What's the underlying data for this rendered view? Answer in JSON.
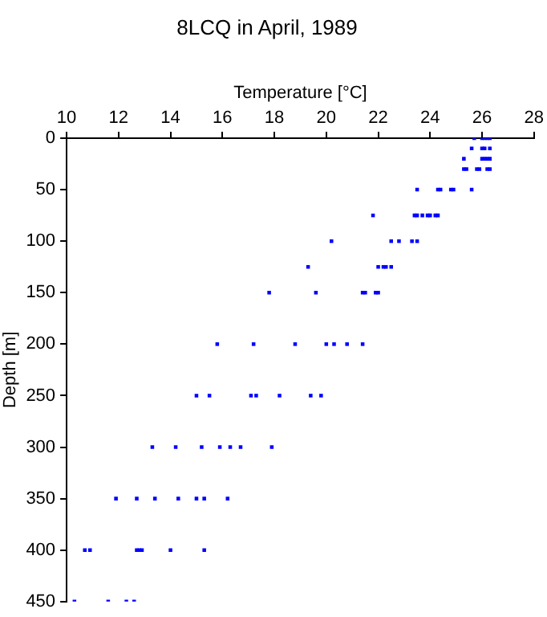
{
  "chart_data": {
    "type": "scatter",
    "title": "8LCQ in April, 1989",
    "xlabel": "Temperature [°C]",
    "ylabel": "Depth [m]",
    "xlim": [
      10,
      28
    ],
    "xticks": [
      10,
      12,
      14,
      16,
      18,
      20,
      22,
      24,
      26,
      28
    ],
    "ylim": [
      450,
      0
    ],
    "yticks": [
      0,
      50,
      100,
      150,
      200,
      250,
      300,
      350,
      400,
      450
    ],
    "grid": false,
    "legend": false,
    "marker": "square",
    "series": [
      {
        "color": "#0000ff",
        "x": [
          25.7,
          26.0,
          26.1,
          26.2,
          26.3,
          25.6,
          26.0,
          26.1,
          26.3,
          25.3,
          26.0,
          26.1,
          26.2,
          26.3,
          25.3,
          25.4,
          25.8,
          25.9,
          26.2,
          26.3,
          23.5,
          24.3,
          24.4,
          24.8,
          24.9,
          25.6,
          21.8,
          23.4,
          23.5,
          23.7,
          23.9,
          24.0,
          24.2,
          24.3,
          20.2,
          22.5,
          22.8,
          23.3,
          23.5,
          19.3,
          22.0,
          22.2,
          22.3,
          22.5,
          17.8,
          19.6,
          21.4,
          21.5,
          21.9,
          22.0,
          15.8,
          17.2,
          18.8,
          20.0,
          20.3,
          20.8,
          21.4,
          15.0,
          15.5,
          17.1,
          17.3,
          18.2,
          19.4,
          19.8,
          13.3,
          14.2,
          15.2,
          15.9,
          16.3,
          16.7,
          17.9,
          11.9,
          12.7,
          13.4,
          14.3,
          15.0,
          15.3,
          16.2,
          10.7,
          10.9,
          12.7,
          12.8,
          12.9,
          14.0,
          15.3,
          10.3,
          11.6,
          12.3,
          12.6
        ],
        "values": [
          0,
          0,
          0,
          0,
          0,
          10,
          10,
          10,
          10,
          20,
          20,
          20,
          20,
          20,
          30,
          30,
          30,
          30,
          30,
          30,
          50,
          50,
          50,
          50,
          50,
          50,
          75,
          75,
          75,
          75,
          75,
          75,
          75,
          75,
          100,
          100,
          100,
          100,
          100,
          125,
          125,
          125,
          125,
          125,
          150,
          150,
          150,
          150,
          150,
          150,
          200,
          200,
          200,
          200,
          200,
          200,
          200,
          250,
          250,
          250,
          250,
          250,
          250,
          250,
          300,
          300,
          300,
          300,
          300,
          300,
          300,
          350,
          350,
          350,
          350,
          350,
          350,
          350,
          400,
          400,
          400,
          400,
          400,
          400,
          400,
          450,
          450,
          450,
          450
        ]
      }
    ]
  }
}
